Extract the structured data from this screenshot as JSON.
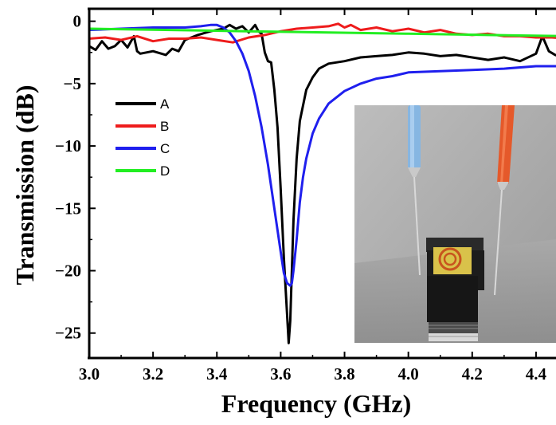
{
  "chart_data": {
    "type": "line",
    "title": "",
    "xlabel": "Frequency (GHz)",
    "ylabel": "Transmission (dB)",
    "xlim": [
      3.0,
      4.5
    ],
    "ylim": [
      -27,
      1
    ],
    "xticks": [
      3.0,
      3.2,
      3.4,
      3.6,
      3.8,
      4.0,
      4.2,
      4.4
    ],
    "xtick_labels": [
      "3.0",
      "3.2",
      "3.4",
      "3.6",
      "3.8",
      "4.0",
      "4.2",
      "4.4"
    ],
    "yticks": [
      0,
      -5,
      -10,
      -15,
      -20,
      -25
    ],
    "ytick_labels": [
      "0",
      "−5",
      "−10",
      "−15",
      "−20",
      "−25"
    ],
    "grid": false,
    "legend_position": "center-left",
    "inset": "photo of a ring-shaped printed sample between a blue-tipped probe and an orange-tipped probe",
    "series": [
      {
        "name": "A",
        "color": "#000000",
        "x": [
          3.0,
          3.02,
          3.04,
          3.06,
          3.08,
          3.1,
          3.12,
          3.14,
          3.15,
          3.16,
          3.2,
          3.24,
          3.26,
          3.28,
          3.3,
          3.34,
          3.38,
          3.42,
          3.44,
          3.46,
          3.48,
          3.5,
          3.52,
          3.53,
          3.54,
          3.55,
          3.56,
          3.57,
          3.58,
          3.59,
          3.6,
          3.61,
          3.62,
          3.625,
          3.63,
          3.635,
          3.64,
          3.65,
          3.66,
          3.68,
          3.7,
          3.72,
          3.75,
          3.8,
          3.85,
          3.9,
          3.95,
          4.0,
          4.05,
          4.1,
          4.15,
          4.2,
          4.25,
          4.3,
          4.35,
          4.4,
          4.42,
          4.44,
          4.46,
          4.48,
          4.5
        ],
        "y": [
          -2.0,
          -2.3,
          -1.6,
          -2.2,
          -2.0,
          -1.5,
          -2.1,
          -1.2,
          -2.4,
          -2.6,
          -2.4,
          -2.7,
          -2.2,
          -2.4,
          -1.5,
          -1.1,
          -0.8,
          -0.6,
          -0.3,
          -0.6,
          -0.4,
          -0.9,
          -0.3,
          -0.8,
          -1.0,
          -2.5,
          -3.2,
          -3.3,
          -5.5,
          -8.5,
          -13.5,
          -19.0,
          -23.5,
          -25.8,
          -24.0,
          -20.0,
          -16.0,
          -11.0,
          -8.0,
          -5.5,
          -4.5,
          -3.8,
          -3.4,
          -3.2,
          -2.9,
          -2.8,
          -2.7,
          -2.5,
          -2.6,
          -2.8,
          -2.7,
          -2.9,
          -3.1,
          -2.9,
          -3.2,
          -2.6,
          -1.2,
          -2.4,
          -2.7,
          -2.9,
          -3.0
        ]
      },
      {
        "name": "B",
        "color": "#ee1c1c",
        "x": [
          3.0,
          3.05,
          3.1,
          3.15,
          3.2,
          3.25,
          3.3,
          3.35,
          3.4,
          3.45,
          3.5,
          3.55,
          3.6,
          3.65,
          3.7,
          3.75,
          3.78,
          3.8,
          3.82,
          3.85,
          3.9,
          3.95,
          4.0,
          4.05,
          4.1,
          4.15,
          4.2,
          4.25,
          4.3,
          4.35,
          4.4,
          4.45,
          4.5
        ],
        "y": [
          -1.4,
          -1.3,
          -1.5,
          -1.2,
          -1.6,
          -1.4,
          -1.4,
          -1.3,
          -1.5,
          -1.7,
          -1.3,
          -1.1,
          -0.8,
          -0.6,
          -0.5,
          -0.4,
          -0.2,
          -0.5,
          -0.3,
          -0.7,
          -0.5,
          -0.8,
          -0.6,
          -0.9,
          -0.7,
          -1.0,
          -1.1,
          -1.0,
          -1.2,
          -1.2,
          -1.3,
          -1.3,
          -1.4
        ]
      },
      {
        "name": "C",
        "color": "#1f1fee",
        "x": [
          3.0,
          3.1,
          3.2,
          3.3,
          3.35,
          3.38,
          3.4,
          3.42,
          3.44,
          3.46,
          3.48,
          3.5,
          3.52,
          3.54,
          3.56,
          3.58,
          3.6,
          3.61,
          3.62,
          3.63,
          3.635,
          3.64,
          3.65,
          3.66,
          3.67,
          3.68,
          3.7,
          3.72,
          3.75,
          3.8,
          3.85,
          3.9,
          3.95,
          4.0,
          4.1,
          4.2,
          4.3,
          4.4,
          4.5
        ],
        "y": [
          -0.7,
          -0.6,
          -0.5,
          -0.5,
          -0.4,
          -0.3,
          -0.3,
          -0.5,
          -0.9,
          -1.6,
          -2.6,
          -4.0,
          -6.0,
          -8.5,
          -11.5,
          -15.0,
          -18.5,
          -20.2,
          -21.0,
          -21.2,
          -21.0,
          -20.0,
          -17.5,
          -14.5,
          -12.5,
          -11.0,
          -9.0,
          -7.8,
          -6.6,
          -5.6,
          -5.0,
          -4.6,
          -4.4,
          -4.1,
          -4.0,
          -3.9,
          -3.8,
          -3.6,
          -3.6
        ]
      },
      {
        "name": "D",
        "color": "#22ee22",
        "x": [
          3.0,
          3.5,
          4.0,
          4.5
        ],
        "y": [
          -0.6,
          -0.8,
          -1.0,
          -1.2
        ]
      }
    ]
  }
}
